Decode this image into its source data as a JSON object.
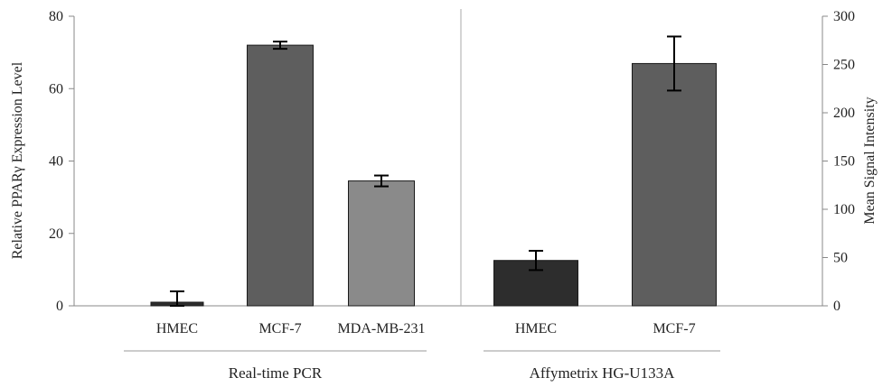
{
  "chart_data": {
    "type": "bar",
    "left_axis": {
      "label": "Relative PPARγ Expression Level",
      "min": 0,
      "max": 80,
      "ticks": [
        0,
        20,
        40,
        60,
        80
      ]
    },
    "right_axis": {
      "label": "Mean Signal Intensity",
      "min": 0,
      "max": 300,
      "ticks": [
        0,
        50,
        100,
        150,
        200,
        250,
        300
      ]
    },
    "groups": [
      {
        "name": "Real-time PCR",
        "axis": "left",
        "bars": [
          {
            "category": "HMEC",
            "value": 1,
            "error": 3,
            "color": "#2d2d2d"
          },
          {
            "category": "MCF-7",
            "value": 72,
            "error": 1,
            "color": "#5e5e5e"
          },
          {
            "category": "MDA-MB-231",
            "value": 34.5,
            "error": 1.5,
            "color": "#8a8a8a"
          }
        ]
      },
      {
        "name": "Affymetrix HG-U133A",
        "axis": "right",
        "bars": [
          {
            "category": "HMEC",
            "value": 47,
            "error": 10,
            "color": "#2d2d2d"
          },
          {
            "category": "MCF-7",
            "value": 251,
            "error": 28,
            "color": "#5e5e5e"
          }
        ]
      }
    ],
    "grid": false,
    "legend": "none"
  }
}
